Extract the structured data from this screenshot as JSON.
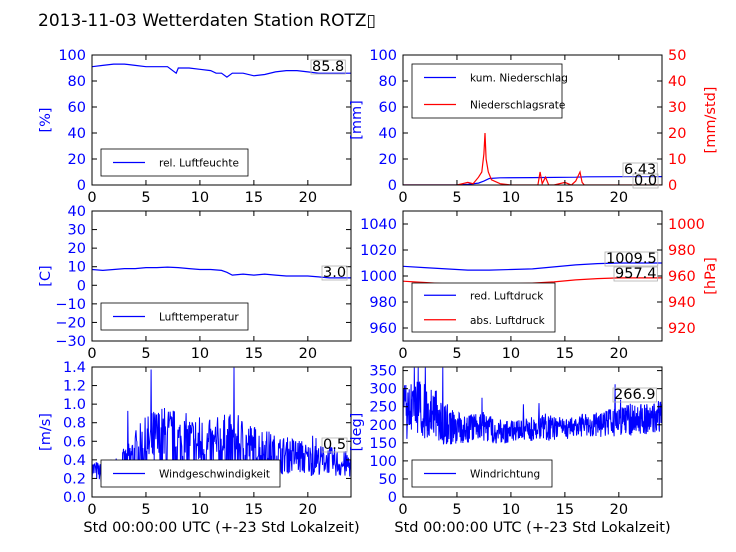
{
  "figure": {
    "title": "2013-11-03 Wetterdaten Station ROTZ▯",
    "colors": {
      "primary": "#0000ff",
      "secondary": "#ff0000",
      "axes": "#000000"
    }
  },
  "chart_data": [
    {
      "id": "humidity",
      "type": "line",
      "title": "",
      "xlabel": "",
      "ylabel": "[%]",
      "xlim": [
        0,
        24
      ],
      "ylim": [
        0,
        100
      ],
      "xticks": [
        "0",
        "5",
        "10",
        "15",
        "20"
      ],
      "yticks": [
        "0",
        "20",
        "40",
        "60",
        "80",
        "100"
      ],
      "legend_position": "lower-left",
      "grid": false,
      "annotation": "85.8",
      "series": [
        {
          "name": "rel. Luftfeuchte",
          "color": "#0000ff",
          "x": [
            0,
            1,
            2,
            3,
            4,
            5,
            6,
            7,
            7.8,
            8,
            9,
            10,
            11,
            11.5,
            12,
            12.5,
            13,
            14,
            15,
            16,
            17,
            18,
            19,
            20,
            21,
            22,
            23,
            24
          ],
          "y": [
            91,
            92,
            93,
            93,
            92,
            91,
            91,
            91,
            86,
            90,
            90,
            89,
            88,
            86,
            86,
            83,
            86,
            86,
            84,
            85,
            87,
            88,
            88,
            87,
            86,
            86,
            86,
            86
          ]
        }
      ]
    },
    {
      "id": "precipitation",
      "type": "line",
      "title": "",
      "xlabel": "",
      "ylabel": "[mm]",
      "ylabel_right": "[mm/std]",
      "xlim": [
        0,
        24
      ],
      "ylim": [
        0,
        100
      ],
      "ylim_right": [
        0,
        50
      ],
      "xticks": [
        "0",
        "5",
        "10",
        "15",
        "20"
      ],
      "yticks": [
        "0",
        "20",
        "40",
        "60",
        "80",
        "100"
      ],
      "yticks_right": [
        "0",
        "10",
        "20",
        "30",
        "40",
        "50"
      ],
      "legend_position": "upper-left",
      "grid": false,
      "annotations": [
        "6.43",
        "0.0"
      ],
      "series": [
        {
          "name": "kum. Niederschlag",
          "color": "#0000ff",
          "axis": "left",
          "x": [
            0,
            5,
            6,
            7,
            7.5,
            8,
            9,
            12,
            13,
            16,
            17,
            20,
            24
          ],
          "y": [
            0,
            0,
            0.5,
            1.5,
            3,
            5,
            5.5,
            5.7,
            5.8,
            6,
            6.3,
            6.4,
            6.43
          ]
        },
        {
          "name": "Niederschlagsrate",
          "color": "#ff0000",
          "axis": "right",
          "x": [
            0,
            5,
            5.5,
            6,
            6.5,
            7,
            7.3,
            7.5,
            7.6,
            7.7,
            7.9,
            8.2,
            9,
            10,
            12.5,
            12.7,
            12.9,
            13.2,
            13.5,
            14,
            15,
            15.3,
            15.6,
            16,
            16.4,
            16.6,
            16.8,
            17,
            20,
            24
          ],
          "y": [
            0,
            0,
            0.5,
            1,
            0.5,
            3,
            5,
            12,
            20,
            10,
            5,
            2,
            0.5,
            0,
            0,
            5,
            0.5,
            3,
            0,
            0,
            1,
            0.5,
            0,
            1.5,
            5,
            1,
            0,
            0,
            0,
            0
          ]
        }
      ]
    },
    {
      "id": "temperature",
      "type": "line",
      "title": "",
      "xlabel": "",
      "ylabel": "[C]",
      "xlim": [
        0,
        24
      ],
      "ylim": [
        -30,
        40
      ],
      "xticks": [
        "0",
        "5",
        "10",
        "15",
        "20"
      ],
      "yticks": [
        "−30",
        "−20",
        "−10",
        "0",
        "10",
        "20",
        "30",
        "40"
      ],
      "legend_position": "lower-left",
      "grid": false,
      "annotation": "3.0",
      "series": [
        {
          "name": "Lufttemperatur",
          "color": "#0000ff",
          "x": [
            0,
            1,
            2,
            3,
            4,
            5,
            6,
            7,
            8,
            9,
            10,
            11,
            12,
            12.5,
            13,
            14,
            15,
            16,
            17,
            18,
            19,
            20,
            21,
            22,
            23,
            24
          ],
          "y": [
            8.5,
            8,
            8.5,
            9,
            9,
            9.5,
            9.5,
            9.8,
            9.5,
            9,
            8.5,
            8.5,
            8,
            7,
            5.5,
            6,
            5.5,
            6,
            5.5,
            5,
            5,
            5,
            4.5,
            4,
            4,
            4
          ]
        }
      ]
    },
    {
      "id": "pressure",
      "type": "line",
      "title": "",
      "xlabel": "",
      "ylabel": "",
      "ylabel_right": "[hPa]",
      "xlim": [
        0,
        24
      ],
      "ylim": [
        950,
        1050
      ],
      "ylim_right": [
        910,
        1010
      ],
      "xticks": [
        "0",
        "5",
        "10",
        "15",
        "20"
      ],
      "yticks": [
        "960",
        "980",
        "1000",
        "1020",
        "1040"
      ],
      "yticks_right": [
        "920",
        "940",
        "960",
        "980",
        "1000"
      ],
      "legend_position": "lower-left",
      "grid": false,
      "annotations": [
        "1009.5",
        "957.4"
      ],
      "series": [
        {
          "name": "red. Luftdruck",
          "color": "#0000ff",
          "axis": "left",
          "x": [
            0,
            2,
            4,
            6,
            8,
            10,
            12,
            14,
            16,
            18,
            20,
            22,
            24
          ],
          "y": [
            1007.5,
            1006.5,
            1005.5,
            1004.5,
            1004.5,
            1005,
            1005.5,
            1007,
            1008.5,
            1009.5,
            1010,
            1010,
            1010
          ]
        },
        {
          "name": "abs. Luftdruck",
          "color": "#ff0000",
          "axis": "right",
          "x": [
            0,
            2,
            4,
            6,
            8,
            10,
            12,
            14,
            16,
            18,
            20,
            22,
            24
          ],
          "y": [
            956,
            955,
            954,
            953.5,
            953.5,
            954,
            954.5,
            955.5,
            957,
            958,
            958.5,
            958.5,
            958.5
          ]
        }
      ]
    },
    {
      "id": "windspeed",
      "type": "line",
      "title": "",
      "xlabel": "Std 00:00:00 UTC (+-23 Std Lokalzeit)",
      "ylabel": "[m/s]",
      "xlim": [
        0,
        24
      ],
      "ylim": [
        0,
        1.4
      ],
      "xticks": [
        "0",
        "5",
        "10",
        "15",
        "20"
      ],
      "yticks": [
        "0.0",
        "0.2",
        "0.4",
        "0.6",
        "0.8",
        "1.0",
        "1.2",
        "1.4"
      ],
      "legend_position": "lower-center",
      "grid": false,
      "annotation": "0.5",
      "noise": {
        "seed": 7,
        "step": 0.04
      },
      "envelope": {
        "x": [
          0,
          1,
          2,
          3,
          4,
          5,
          6,
          7,
          8,
          9,
          10,
          11,
          12,
          13,
          14,
          15,
          16,
          17,
          18,
          19,
          20,
          21,
          22,
          23,
          24
        ],
        "y": [
          0.3,
          0.25,
          0.3,
          0.35,
          0.45,
          0.55,
          0.6,
          0.6,
          0.55,
          0.55,
          0.55,
          0.5,
          0.55,
          0.55,
          0.55,
          0.5,
          0.5,
          0.45,
          0.45,
          0.45,
          0.4,
          0.4,
          0.4,
          0.35,
          0.35
        ],
        "spread": [
          0.12,
          0.1,
          0.12,
          0.18,
          0.28,
          0.32,
          0.38,
          0.4,
          0.38,
          0.35,
          0.35,
          0.33,
          0.35,
          0.35,
          0.32,
          0.28,
          0.25,
          0.22,
          0.2,
          0.2,
          0.18,
          0.16,
          0.15,
          0.15,
          0.15
        ]
      },
      "series": [
        {
          "name": "Windgeschwindigkeit",
          "color": "#0000ff"
        }
      ]
    },
    {
      "id": "winddir",
      "type": "line",
      "title": "",
      "xlabel": "Std 00:00:00 UTC (+-23 Std Lokalzeit)",
      "ylabel": "[deg]",
      "xlim": [
        0,
        24
      ],
      "ylim": [
        0,
        360
      ],
      "xticks": [
        "0",
        "5",
        "10",
        "15",
        "20"
      ],
      "yticks": [
        "0",
        "50",
        "100",
        "150",
        "200",
        "250",
        "300",
        "350"
      ],
      "legend_position": "lower-left",
      "grid": false,
      "annotation": "266.9",
      "noise": {
        "seed": 13,
        "step": 0.03
      },
      "envelope": {
        "x": [
          0,
          1,
          2,
          3,
          4,
          5,
          6,
          7,
          8,
          9,
          10,
          11,
          12,
          13,
          14,
          15,
          16,
          17,
          18,
          19,
          20,
          21,
          22,
          23,
          24
        ],
        "y": [
          230,
          250,
          240,
          230,
          200,
          190,
          190,
          200,
          190,
          180,
          180,
          185,
          190,
          195,
          190,
          190,
          195,
          200,
          200,
          205,
          210,
          215,
          215,
          220,
          225
        ],
        "spread": [
          80,
          70,
          80,
          70,
          60,
          45,
          40,
          40,
          40,
          35,
          30,
          30,
          35,
          40,
          35,
          30,
          30,
          35,
          35,
          40,
          40,
          45,
          45,
          45,
          45
        ]
      },
      "series": [
        {
          "name": "Windrichtung",
          "color": "#0000ff"
        }
      ]
    }
  ]
}
